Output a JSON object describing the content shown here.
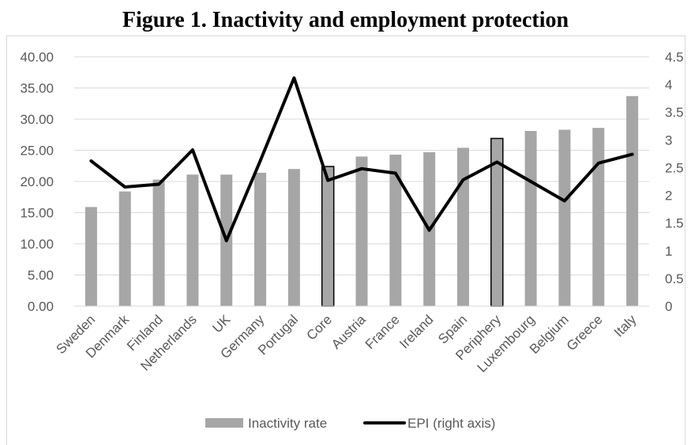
{
  "figure": {
    "title": "Figure 1. Inactivity and employment protection"
  },
  "chart_data": {
    "type": "bar",
    "categories": [
      "Sweden",
      "Denmark",
      "Finland",
      "Netherlands",
      "UK",
      "Germany",
      "Portugal",
      "Core",
      "Austria",
      "France",
      "Ireland",
      "Spain",
      "Periphery",
      "Luxembourg",
      "Belgium",
      "Greece",
      "Italy"
    ],
    "highlighted_categories": [
      "Core",
      "Periphery"
    ],
    "series": [
      {
        "name": "Inactivity rate",
        "type": "bar",
        "axis": "left",
        "color": "#a6a6a6",
        "values": [
          15.9,
          18.4,
          20.3,
          21.1,
          21.1,
          21.4,
          22.0,
          22.4,
          24.0,
          24.3,
          24.7,
          25.4,
          26.9,
          28.1,
          28.3,
          28.6,
          33.7
        ]
      },
      {
        "name": "EPI (right axis)",
        "type": "line",
        "axis": "right",
        "color": "#000000",
        "values": [
          2.62,
          2.15,
          2.2,
          2.82,
          1.18,
          2.62,
          4.12,
          2.27,
          2.48,
          2.4,
          1.37,
          2.28,
          2.6,
          2.25,
          1.9,
          2.58,
          2.74
        ]
      }
    ],
    "y_left": {
      "min": 0,
      "max": 40,
      "step": 5,
      "tick_labels": [
        "0.00",
        "5.00",
        "10.00",
        "15.00",
        "20.00",
        "25.00",
        "30.00",
        "35.00",
        "40.00"
      ]
    },
    "y_right": {
      "min": 0,
      "max": 4.5,
      "step": 0.5,
      "tick_labels": [
        "0",
        "0.5",
        "1",
        "1.5",
        "2",
        "2.5",
        "3",
        "3.5",
        "4",
        "4.5"
      ]
    },
    "grid": true,
    "legend_position": "bottom",
    "colors": {
      "bar": "#a6a6a6",
      "line": "#000000",
      "grid": "#d9d9d9",
      "text": "#595959"
    }
  }
}
